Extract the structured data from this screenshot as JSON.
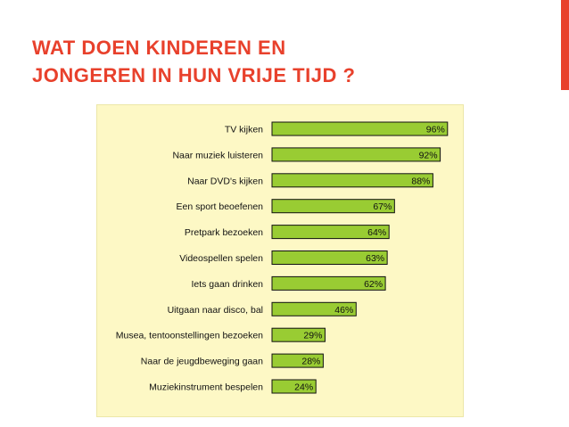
{
  "slide": {
    "title_line1": "WAT DOEN KINDEREN EN",
    "title_line2": "JONGEREN IN HUN VRIJE TIJD ?"
  },
  "colors": {
    "title": "#e8412c",
    "accent_bar": "#e8412c",
    "panel_background": "#fdf8c5",
    "bar_fill": "#99cc33",
    "bar_border": "#111111"
  },
  "chart_data": {
    "type": "bar",
    "orientation": "horizontal",
    "categories": [
      "TV kijken",
      "Naar muziek luisteren",
      "Naar DVD's kijken",
      "Een sport beoefenen",
      "Pretpark bezoeken",
      "Videospellen spelen",
      "Iets gaan drinken",
      "Uitgaan naar disco, bal",
      "Musea, tentoonstellingen bezoeken",
      "Naar de jeugdbeweging gaan",
      "Muziekinstrument bespelen"
    ],
    "values": [
      96,
      92,
      88,
      67,
      64,
      63,
      62,
      46,
      29,
      28,
      24
    ],
    "value_labels": [
      "96%",
      "92%",
      "88%",
      "67%",
      "64%",
      "63%",
      "62%",
      "46%",
      "29%",
      "28%",
      "24%"
    ],
    "xlim": [
      0,
      100
    ],
    "grid": false,
    "legend": "none"
  }
}
